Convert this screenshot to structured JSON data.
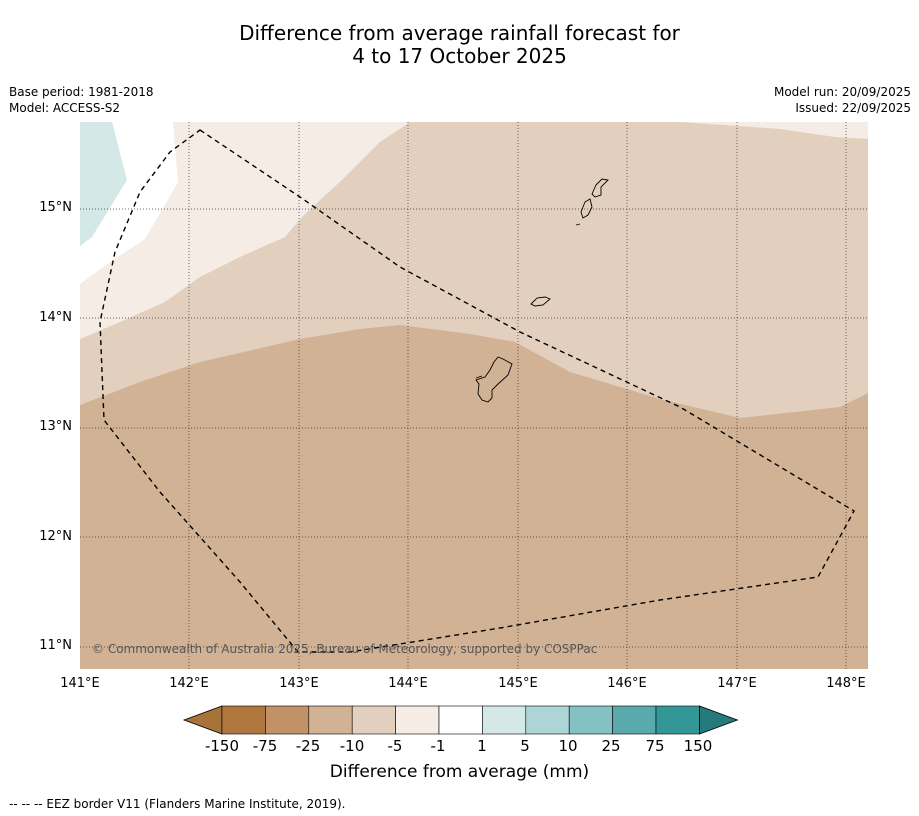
{
  "title": {
    "line1": "Difference from average rainfall forecast for",
    "line2": "4 to 17 October 2025"
  },
  "meta_left": {
    "base_period": "Base period: 1981-2018",
    "model": "Model: ACCESS-S2"
  },
  "meta_right": {
    "model_run": "Model run: 20/09/2025",
    "issued": "Issued: 22/09/2025"
  },
  "map": {
    "lon_range": [
      141.0,
      148.2
    ],
    "lat_range": [
      10.8,
      15.8
    ],
    "lat_ticks": [
      "15°N",
      "14°N",
      "13°N",
      "12°N",
      "11°N"
    ],
    "lon_ticks": [
      "141°E",
      "142°E",
      "143°E",
      "144°E",
      "145°E",
      "146°E",
      "147°E",
      "148°E"
    ],
    "copyright": "© Commonwealth of Australia 2025, Bureau of Meteorology, supported by COSPPac",
    "region_colors": {
      "minus_25_to_10": "#d2b295",
      "minus_10_to_5": "#e3cfbd",
      "minus_5_to_1": "#f4ece5",
      "minus_1_to_1": "#ffffff",
      "plus_1_to_5": "#d4e8e8"
    }
  },
  "colorbar": {
    "ticks": [
      "-150",
      "-75",
      "-25",
      "-10",
      "-5",
      "-1",
      "1",
      "5",
      "10",
      "25",
      "75",
      "150"
    ],
    "colors": [
      "#a8723b",
      "#b0783e",
      "#c19266",
      "#d2b295",
      "#e3cfbd",
      "#f4ece5",
      "#ffffff",
      "#d4e8e8",
      "#add5d5",
      "#84c1c2",
      "#5aaaad",
      "#339797",
      "#257b7b"
    ],
    "label": "Difference from average (mm)"
  },
  "footer": "--  --  -- EEZ border V11 (Flanders Marine Institute, 2019)."
}
